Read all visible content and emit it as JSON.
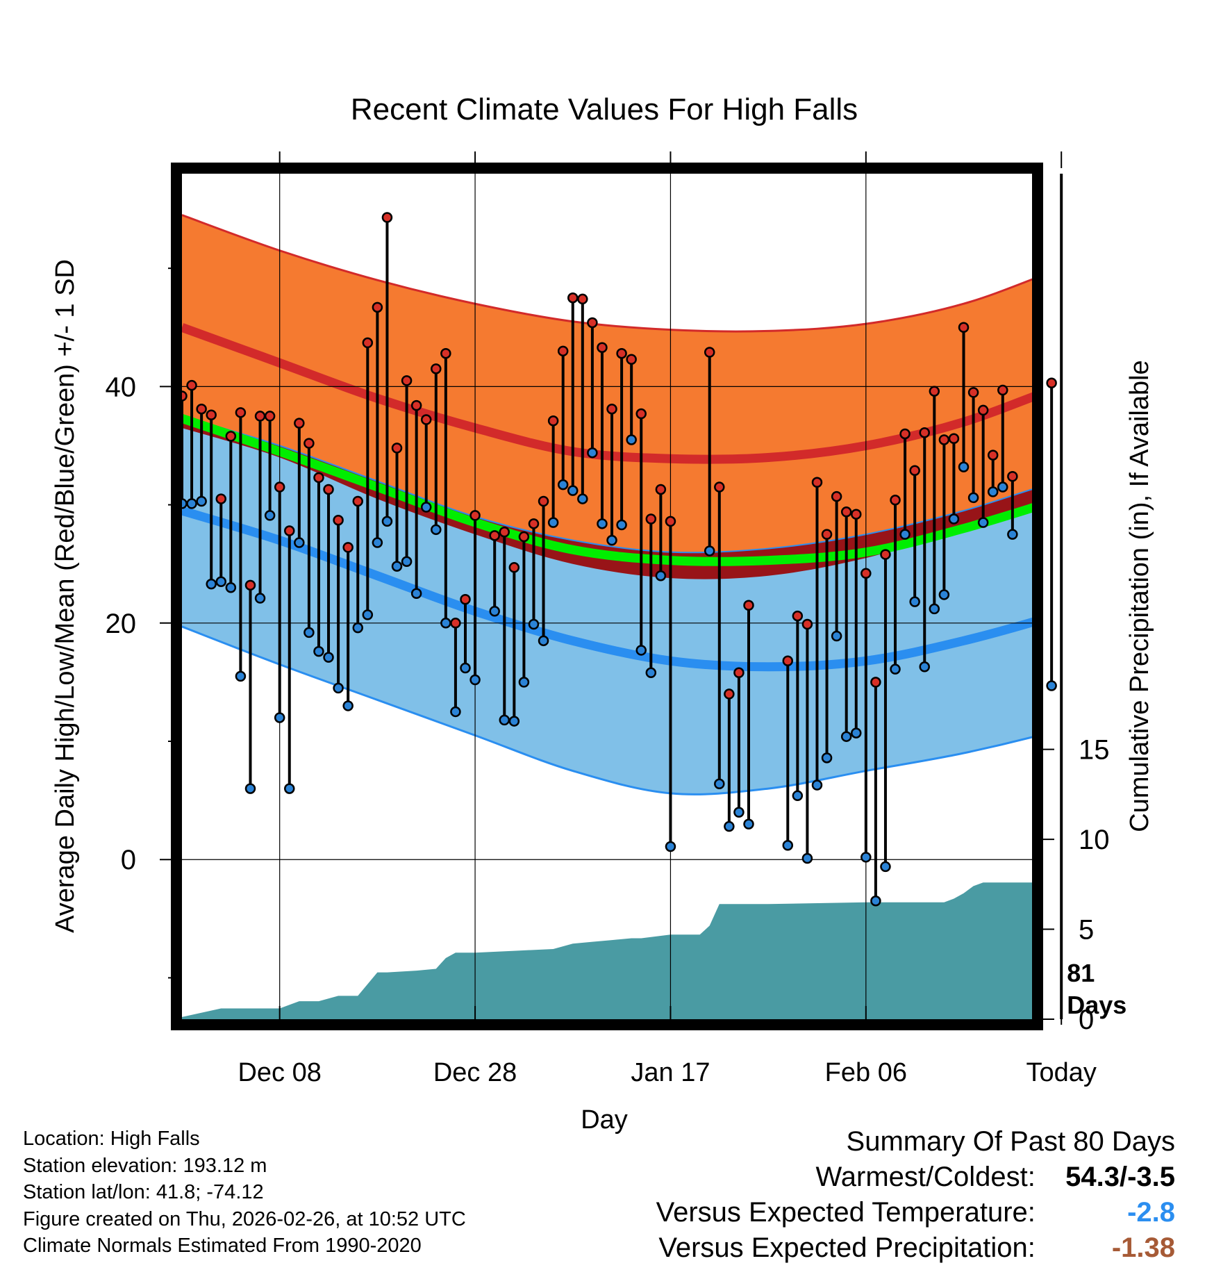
{
  "chart_data": {
    "type": "line",
    "title": "Recent Climate Values For High Falls",
    "xlabel": "Day",
    "ylabel": "Average Daily High/Low/Mean (Red/Blue/Green) +/- 1 SD",
    "y2label": "Cumulative Precipitation (in), If Available",
    "x_range_days": [
      -80,
      7
    ],
    "ylim": [
      -13.5,
      58
    ],
    "y2lim": [
      0,
      47
    ],
    "x_ticks": [
      {
        "day": -70,
        "label": "Dec 08"
      },
      {
        "day": -50,
        "label": "Dec 28"
      },
      {
        "day": -30,
        "label": "Jan 17"
      },
      {
        "day": -10,
        "label": "Feb 06"
      },
      {
        "day": 10,
        "label": "Today"
      }
    ],
    "y_ticks": [
      0,
      20,
      40
    ],
    "y_minor_ticks": [
      -10,
      10,
      30,
      50
    ],
    "y2_ticks": [
      0,
      5,
      10,
      15
    ],
    "today_marker": {
      "day": 10,
      "label_line1": "81",
      "label_line2": "Days"
    },
    "normals": {
      "days": [
        -80,
        -70,
        -60,
        -50,
        -40,
        -30,
        -20,
        -10,
        0,
        10,
        20
      ],
      "high_mean": [
        45.0,
        42.0,
        39.0,
        36.5,
        34.5,
        33.9,
        34.0,
        35.0,
        37.0,
        40.0,
        42.5
      ],
      "high_sd_upper": [
        54.5,
        51.5,
        49.0,
        47.0,
        45.5,
        44.8,
        44.7,
        45.3,
        47.0,
        50.0,
        53.0
      ],
      "high_sd_lower": [
        36.5,
        34.0,
        30.5,
        27.5,
        25.0,
        23.8,
        24.0,
        25.5,
        28.0,
        30.5,
        33.0
      ],
      "low_mean": [
        29.5,
        27.0,
        24.0,
        21.0,
        18.5,
        16.8,
        16.3,
        16.8,
        18.5,
        20.8,
        23.5
      ],
      "low_sd_upper": [
        37.5,
        35.0,
        32.0,
        29.0,
        27.0,
        26.0,
        26.3,
        27.5,
        29.5,
        32.0,
        33.5
      ],
      "low_sd_lower": [
        19.7,
        16.5,
        13.5,
        10.5,
        7.5,
        5.6,
        6.0,
        7.5,
        9.0,
        11.0,
        13.5
      ],
      "mean": [
        37.3,
        34.5,
        31.5,
        28.5,
        26.2,
        25.3,
        25.3,
        26.0,
        28.0,
        30.5,
        33.0
      ]
    },
    "observations": {
      "days": [
        -80,
        -79,
        -78,
        -77,
        -76,
        -75,
        -74,
        -73,
        -72,
        -71,
        -70,
        -69,
        -68,
        -67,
        -66,
        -65,
        -64,
        -63,
        -62,
        -61,
        -60,
        -59,
        -58,
        -57,
        -56,
        -55,
        -54,
        -53,
        -52,
        -51,
        -50,
        -48,
        -47,
        -46,
        -45,
        -44,
        -43,
        -42,
        -41,
        -40,
        -39,
        -38,
        -37,
        -36,
        -35,
        -34,
        -33,
        -32,
        -31,
        -30,
        -26,
        -25,
        -24,
        -23,
        -22,
        -18,
        -17,
        -16,
        -15,
        -14,
        -13,
        -12,
        -11,
        -10,
        -9,
        -8,
        -7,
        -6,
        -5,
        -4,
        -3,
        -2,
        -1,
        0,
        1,
        2,
        3,
        4,
        5,
        9
      ],
      "highs": [
        39.2,
        40.1,
        38.1,
        37.6,
        30.5,
        35.8,
        37.8,
        23.2,
        37.5,
        37.5,
        31.5,
        27.8,
        36.9,
        35.2,
        32.3,
        31.3,
        28.7,
        26.4,
        30.3,
        43.7,
        46.7,
        54.3,
        34.8,
        40.5,
        38.4,
        37.2,
        41.5,
        42.8,
        20.0,
        22.0,
        29.1,
        27.4,
        27.7,
        24.7,
        27.3,
        28.4,
        30.3,
        37.1,
        43.0,
        47.5,
        47.4,
        45.4,
        43.3,
        38.1,
        42.8,
        42.3,
        37.7,
        28.8,
        31.3,
        28.6,
        42.9,
        31.5,
        14.0,
        15.8,
        21.5,
        16.8,
        20.6,
        19.9,
        31.9,
        27.5,
        30.7,
        29.4,
        29.2,
        24.2,
        15.0,
        25.8,
        30.4,
        36.0,
        32.9,
        36.1,
        39.6,
        35.5,
        35.6,
        45.0,
        39.5,
        38.0,
        34.2,
        39.7,
        32.4,
        40.3
      ],
      "lows": [
        30.1,
        30.1,
        30.3,
        23.3,
        23.5,
        23.0,
        15.5,
        6.0,
        22.1,
        29.1,
        12.0,
        6.0,
        26.8,
        19.2,
        17.6,
        17.1,
        14.5,
        13.0,
        19.6,
        20.7,
        26.8,
        28.6,
        24.8,
        25.2,
        22.5,
        29.8,
        27.9,
        20.0,
        12.5,
        16.2,
        15.2,
        21.0,
        11.8,
        11.7,
        15.0,
        19.9,
        18.5,
        28.5,
        31.7,
        31.2,
        30.5,
        34.4,
        28.4,
        27.0,
        28.3,
        35.5,
        17.7,
        15.8,
        24.0,
        1.1,
        26.1,
        6.4,
        2.8,
        4.0,
        3.0,
        1.2,
        5.4,
        0.1,
        6.3,
        8.6,
        18.9,
        10.4,
        10.7,
        0.2,
        -3.5,
        -0.6,
        16.1,
        27.5,
        21.8,
        16.3,
        21.2,
        22.4,
        28.8,
        33.2,
        30.6,
        28.5,
        31.1,
        31.5,
        27.5,
        14.7
      ]
    },
    "precip": {
      "days": [
        -81,
        -76,
        -70,
        -68,
        -66,
        -64,
        -62,
        -60,
        -59,
        -56,
        -54,
        -53,
        -52,
        -50,
        -46,
        -42,
        -40,
        -38,
        -36,
        -34,
        -33,
        -30,
        -27,
        -26,
        -25,
        -22,
        -20,
        -10,
        -2,
        -1,
        0,
        1,
        2,
        3,
        4,
        5,
        7
      ],
      "values": [
        0,
        0.6,
        0.6,
        1.0,
        1.0,
        1.3,
        1.3,
        2.6,
        2.6,
        2.7,
        2.8,
        3.4,
        3.7,
        3.7,
        3.8,
        3.9,
        4.2,
        4.3,
        4.4,
        4.5,
        4.5,
        4.7,
        4.7,
        5.2,
        6.4,
        6.4,
        6.4,
        6.5,
        6.5,
        6.7,
        7.0,
        7.4,
        7.6,
        7.6,
        7.6,
        7.6,
        7.6
      ]
    }
  },
  "location": {
    "label": "Location: High Falls",
    "elevation": "Station elevation: 193.12 m",
    "latlon": "Station lat/lon: 41.8; -74.12",
    "created": "Figure created on Thu, 2026-02-26, at 10:52 UTC",
    "normals_period": "Climate Normals Estimated From 1990-2020"
  },
  "summary": {
    "title": "Summary Of Past 80 Days",
    "warmest_coldest_label": "Warmest/Coldest:",
    "warmest_coldest_value": "54.3/-3.5",
    "temp_label": "Versus Expected Temperature:",
    "temp_value": "-2.8",
    "precip_label": "Versus Expected Precipitation:",
    "precip_value": "-1.38"
  },
  "colors": {
    "high_band": "#f57a30",
    "high_line": "#d22a2a",
    "mean_band": "#981418",
    "mean_line": "#00ee00",
    "low_band": "#80c0e8",
    "low_line": "#2a8ef0",
    "precip_fill": "#4a9ba3",
    "high_dot": "#d73027",
    "low_dot": "#2b83d6",
    "temp_value": "#2b8ef0",
    "precip_value": "#a65a36"
  }
}
